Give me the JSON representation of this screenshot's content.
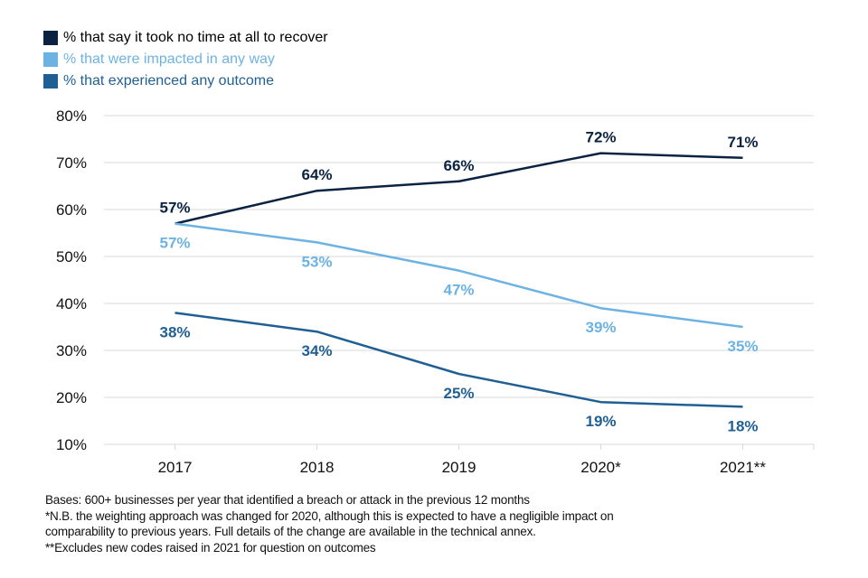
{
  "chart_data": {
    "type": "line",
    "title": "",
    "xlabel": "",
    "ylabel": "",
    "categories": [
      "2017",
      "2018",
      "2019",
      "2020*",
      "2021**"
    ],
    "ylim": [
      10,
      80
    ],
    "yticks": [
      10,
      20,
      30,
      40,
      50,
      60,
      70,
      80
    ],
    "ytick_labels": [
      "10%",
      "20%",
      "30%",
      "40%",
      "50%",
      "60%",
      "70%",
      "80%"
    ],
    "grid": true,
    "legend_position": "top-left",
    "series": [
      {
        "name": "% that say it took no time at all to recover",
        "color": "#0b2341",
        "values": [
          57,
          64,
          66,
          72,
          71
        ],
        "labels": [
          "57%",
          "64%",
          "66%",
          "72%",
          "71%"
        ],
        "label_position": "above"
      },
      {
        "name": "% that were impacted in any way",
        "color": "#6cb3e3",
        "values": [
          57,
          53,
          47,
          39,
          35
        ],
        "labels": [
          "57%",
          "53%",
          "47%",
          "39%",
          "35%"
        ],
        "label_position": "below"
      },
      {
        "name": "% that experienced any outcome",
        "color": "#1f5f94",
        "values": [
          38,
          34,
          25,
          19,
          18
        ],
        "labels": [
          "38%",
          "34%",
          "25%",
          "19%",
          "18%"
        ],
        "label_position": "below"
      }
    ]
  },
  "notes": [
    "Bases: 600+ businesses per year that identified a breach or attack in the previous 12 months",
    "*N.B. the weighting approach was changed for 2020, although this is expected to have a negligible impact on",
    "comparability to previous years. Full details of the change are available in the technical annex.",
    "**Excludes new codes raised in 2021 for question on outcomes"
  ]
}
